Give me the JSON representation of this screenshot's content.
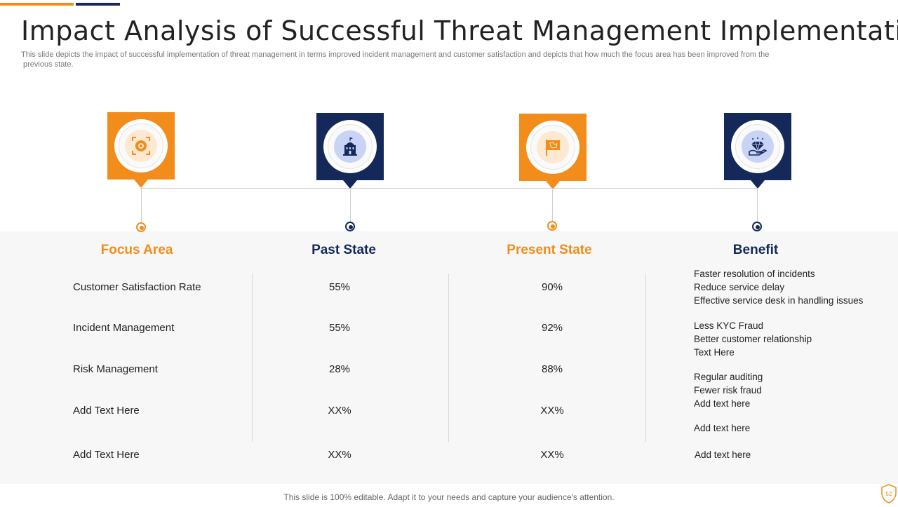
{
  "title": "Impact Analysis of Successful Threat Management Implementation",
  "subtitle_line1": "This slide depicts the impact of successful implementation of threat management in terms improved incident management and customer satisfaction and depicts that how much the focus area has been improved from the",
  "subtitle_line2": "previous state.",
  "colors": {
    "orange": "#f28c1a",
    "navy": "#14285a",
    "panel": "#f7f7f7"
  },
  "icons": [
    "target-icon",
    "building-icon",
    "flag-icon",
    "diamond-hand-icon"
  ],
  "columns": {
    "focus": "Focus Area",
    "past": "Past State",
    "present": "Present State",
    "benefit": "Benefit"
  },
  "rows": [
    {
      "focus": "Customer Satisfaction Rate",
      "past": "55%",
      "present": "90%"
    },
    {
      "focus": "Incident Management",
      "past": "55%",
      "present": "92%"
    },
    {
      "focus": "Risk Management",
      "past": "28%",
      "present": "88%"
    },
    {
      "focus": "Add Text Here",
      "past": "XX%",
      "present": "XX%"
    },
    {
      "focus": "Add Text Here",
      "past": "XX%",
      "present": "XX%"
    }
  ],
  "benefits": [
    [
      "Faster resolution of incidents",
      "Reduce service  delay",
      "Effective  service desk in handling  issues"
    ],
    [
      "Less KYC Fraud",
      "Better customer relationship",
      "Text Here"
    ],
    [
      "Regular  auditing",
      "Fewer  risk fraud",
      "Add text here"
    ],
    [
      "Add text here"
    ],
    [
      "Add text here"
    ]
  ],
  "footer": "This slide is 100% editable. Adapt it to your needs and capture your audience's attention.",
  "page_number": "52"
}
